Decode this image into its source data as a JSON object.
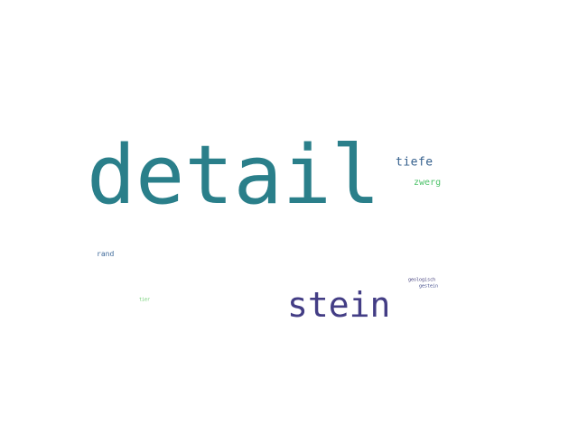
{
  "words": [
    {
      "text": "detail",
      "color": "#2a7f8a"
    },
    {
      "text": "stein",
      "color": "#433d85"
    },
    {
      "text": "tiefe",
      "color": "#35608d"
    },
    {
      "text": "zwerg",
      "color": "#4fc36b"
    },
    {
      "text": "rand",
      "color": "#3f6a9a"
    },
    {
      "text": "geologisch",
      "color": "#3f3b7a"
    },
    {
      "text": "gestein",
      "color": "#3f4a8a"
    },
    {
      "text": "tier",
      "color": "#5ec962"
    }
  ]
}
